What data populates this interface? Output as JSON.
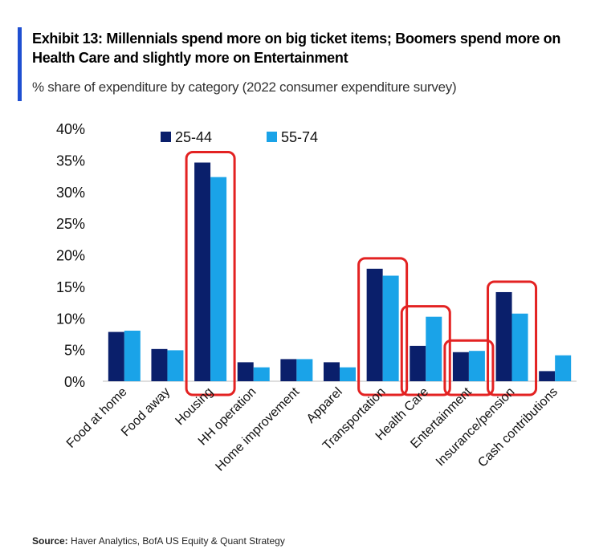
{
  "header": {
    "title": "Exhibit 13: Millennials spend more on big ticket items; Boomers spend more on Health Care and slightly more on Entertainment",
    "subtitle": "% share of expenditure by category (2022 consumer expenditure survey)"
  },
  "footer": {
    "source_label": "Source:",
    "source_text": "Haver Analytics, BofA US Equity & Quant Strategy"
  },
  "colors": {
    "series_25_44": "#0a1f6b",
    "series_55_74": "#1aa3e8",
    "highlight": "#e32222",
    "accent": "#1f4fd1"
  },
  "chart_data": {
    "type": "bar",
    "title": "",
    "xlabel": "",
    "ylabel": "",
    "ylim": [
      0,
      40
    ],
    "yticks": [
      "0%",
      "5%",
      "10%",
      "15%",
      "20%",
      "25%",
      "30%",
      "35%",
      "40%"
    ],
    "legend_position": "top",
    "categories": [
      "Food at home",
      "Food away",
      "Housing",
      "HH operation",
      "Home improvement",
      "Apparel",
      "Transportation",
      "Health Care",
      "Entertainment",
      "Insurance/pension",
      "Cash contributions"
    ],
    "series": [
      {
        "name": "25-44",
        "values": [
          7.8,
          5.1,
          34.6,
          3.0,
          3.5,
          3.0,
          17.8,
          5.6,
          4.6,
          14.1,
          1.6
        ]
      },
      {
        "name": "55-74",
        "values": [
          8.0,
          4.9,
          32.3,
          2.2,
          3.5,
          2.2,
          16.7,
          10.2,
          4.8,
          10.7,
          4.1
        ]
      }
    ],
    "highlighted_categories": [
      "Housing",
      "Transportation",
      "Health Care",
      "Entertainment",
      "Insurance/pension"
    ]
  }
}
